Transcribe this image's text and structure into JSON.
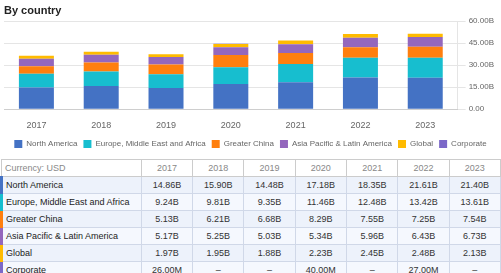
{
  "chart_data": {
    "type": "bar",
    "title": "By country",
    "stacked": true,
    "grid": true,
    "legend": "bottom",
    "categories": [
      "2017",
      "2018",
      "2019",
      "2020",
      "2021",
      "2022",
      "2023"
    ],
    "series": [
      {
        "name": "North America",
        "color": "#4472C4",
        "values": [
          14.86,
          15.9,
          14.48,
          17.18,
          18.35,
          21.61,
          21.4
        ],
        "value_labels": [
          "14.86B",
          "15.90B",
          "14.48B",
          "17.18B",
          "18.35B",
          "21.61B",
          "21.40B"
        ]
      },
      {
        "name": "Europe, Middle East and Africa",
        "color": "#17BECF",
        "values": [
          9.24,
          9.81,
          9.35,
          11.46,
          12.48,
          13.42,
          13.61
        ],
        "value_labels": [
          "9.24B",
          "9.81B",
          "9.35B",
          "11.46B",
          "12.48B",
          "13.42B",
          "13.61B"
        ]
      },
      {
        "name": "Greater China",
        "color": "#FF7F0E",
        "values": [
          5.13,
          6.21,
          6.68,
          8.29,
          7.55,
          7.25,
          7.54
        ],
        "value_labels": [
          "5.13B",
          "6.21B",
          "6.68B",
          "8.29B",
          "7.55B",
          "7.25B",
          "7.54B"
        ]
      },
      {
        "name": "Asia Pacific & Latin America",
        "color": "#9467BD",
        "values": [
          5.17,
          5.25,
          5.03,
          5.34,
          5.96,
          6.43,
          6.73
        ],
        "value_labels": [
          "5.17B",
          "5.25B",
          "5.03B",
          "5.34B",
          "5.96B",
          "6.43B",
          "6.73B"
        ]
      },
      {
        "name": "Global",
        "color": "#FFBB00",
        "values": [
          1.97,
          1.95,
          1.88,
          2.23,
          2.45,
          2.48,
          2.13
        ],
        "value_labels": [
          "1.97B",
          "1.95B",
          "1.88B",
          "2.23B",
          "2.45B",
          "2.48B",
          "2.13B"
        ]
      },
      {
        "name": "Corporate",
        "color": "#7B68C8",
        "values": [
          0.026,
          0.0,
          0.0,
          0.04,
          0.0,
          0.027,
          0.0
        ],
        "value_labels": [
          "26.00M",
          "–",
          "–",
          "40.00M",
          "–",
          "27.00M",
          "–"
        ]
      }
    ],
    "table_header": "Currency: USD",
    "ylim": [
      0,
      60
    ],
    "yticks": [
      {
        "value": 0,
        "label": "0.00"
      },
      {
        "value": 15,
        "label": "15.00B"
      },
      {
        "value": 30,
        "label": "30.00B"
      },
      {
        "value": 45,
        "label": "45.00B"
      },
      {
        "value": 60,
        "label": "60.00B"
      }
    ]
  }
}
